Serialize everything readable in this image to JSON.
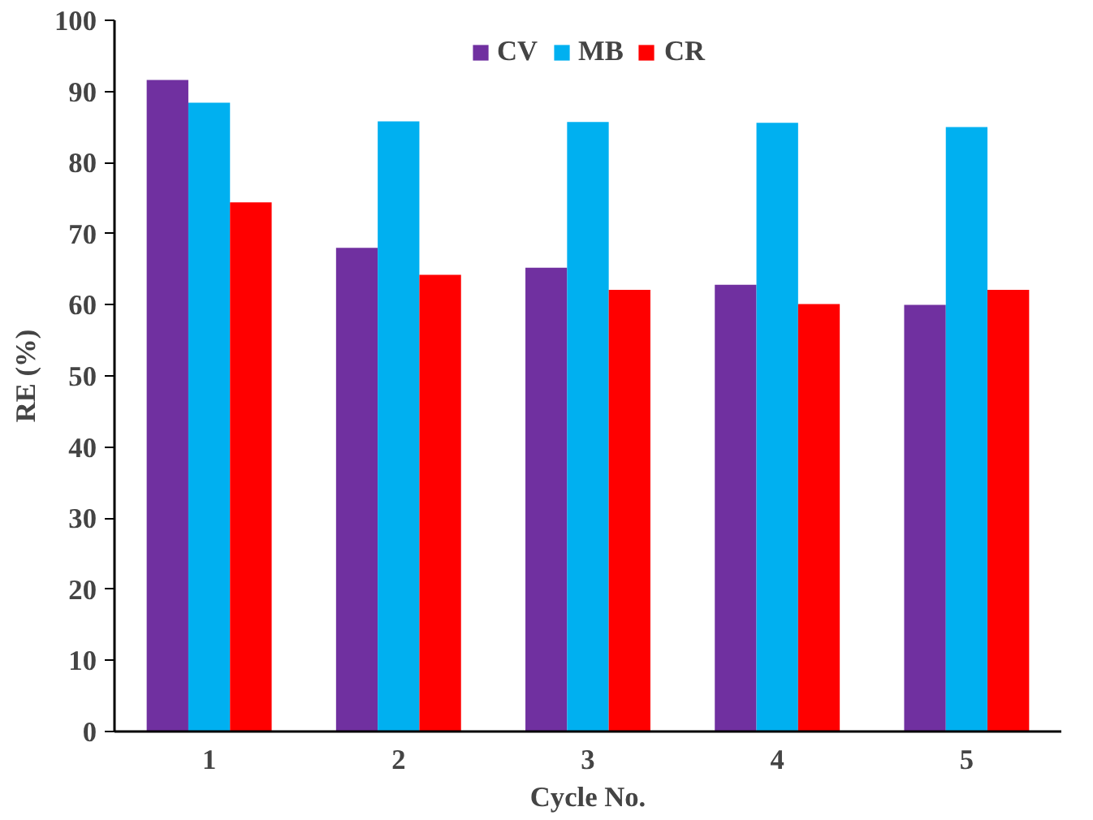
{
  "chart_data": {
    "type": "bar",
    "xlabel": "Cycle No.",
    "ylabel": "RE (%)",
    "categories": [
      "1",
      "2",
      "3",
      "4",
      "5"
    ],
    "series": [
      {
        "name": "CV",
        "color": "#7030a0",
        "values": [
          91.6,
          68.0,
          65.2,
          62.8,
          60.0
        ]
      },
      {
        "name": "MB",
        "color": "#00b0f0",
        "values": [
          88.4,
          85.8,
          85.7,
          85.6,
          85.0
        ]
      },
      {
        "name": "CR",
        "color": "#ff0000",
        "values": [
          74.4,
          64.2,
          62.1,
          60.1,
          62.1
        ]
      }
    ],
    "ylim": [
      0,
      100
    ],
    "yticks": [
      0,
      10,
      20,
      30,
      40,
      50,
      60,
      70,
      80,
      90,
      100
    ],
    "grid": false,
    "legend": "top"
  }
}
